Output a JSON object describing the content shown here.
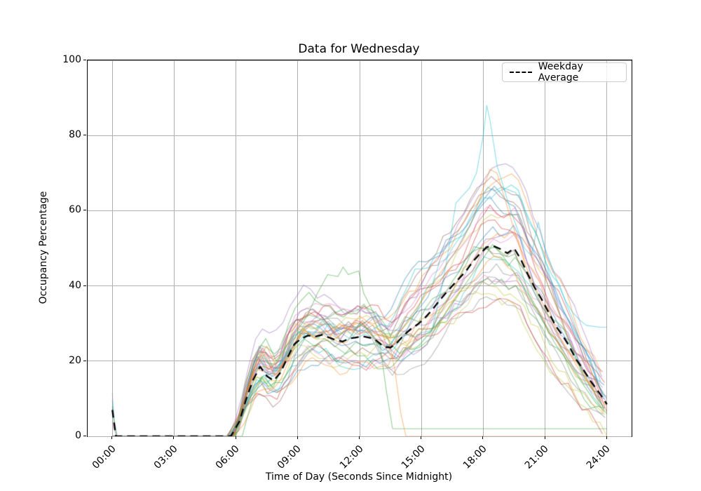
{
  "chart_data": {
    "type": "line",
    "title": "Data for Wednesday",
    "xlabel": "Time of Day (Seconds Since Midnight)",
    "ylabel": "Occupancy Percentage",
    "x_tick_labels": [
      "00:00",
      "03:00",
      "06:00",
      "09:00",
      "12:00",
      "15:00",
      "18:00",
      "21:00",
      "24:00"
    ],
    "x_tick_hours": [
      0,
      3,
      6,
      9,
      12,
      15,
      18,
      21,
      24
    ],
    "y_tick_labels": [
      "0",
      "20",
      "40",
      "60",
      "80",
      "100"
    ],
    "y_tick_values": [
      0,
      20,
      40,
      60,
      80,
      100
    ],
    "xlim_hours": [
      -1.2,
      25.2
    ],
    "ylim": [
      0,
      100
    ],
    "grid": true,
    "grid_color": "#b0b0b0",
    "legend": {
      "position": "upper right",
      "entries": [
        {
          "label": "Weekday Average",
          "color": "#000000",
          "dashed": true
        }
      ]
    },
    "average_series": {
      "name": "Weekday Average",
      "color": "#000000",
      "linewidth": 2.3,
      "dash": [
        11,
        7
      ],
      "points_h_pct": [
        [
          0,
          7
        ],
        [
          0.17,
          0
        ],
        [
          1,
          0
        ],
        [
          2,
          0
        ],
        [
          3,
          0
        ],
        [
          4,
          0
        ],
        [
          5,
          0
        ],
        [
          5.75,
          0
        ],
        [
          6.17,
          4
        ],
        [
          6.5,
          10
        ],
        [
          6.83,
          15
        ],
        [
          7.17,
          18.5
        ],
        [
          7.5,
          16
        ],
        [
          7.83,
          14.8
        ],
        [
          8.17,
          17
        ],
        [
          8.5,
          21
        ],
        [
          8.83,
          24.5
        ],
        [
          9.17,
          26
        ],
        [
          9.5,
          26.8
        ],
        [
          9.83,
          26.5
        ],
        [
          10.17,
          27
        ],
        [
          10.5,
          26.3
        ],
        [
          10.83,
          25.6
        ],
        [
          11.17,
          25.2
        ],
        [
          11.5,
          26
        ],
        [
          11.83,
          26.3
        ],
        [
          12.17,
          26.6
        ],
        [
          12.5,
          26.2
        ],
        [
          12.83,
          25.4
        ],
        [
          13.17,
          23.8
        ],
        [
          13.5,
          23.6
        ],
        [
          13.83,
          25
        ],
        [
          14.17,
          27
        ],
        [
          14.5,
          28.6
        ],
        [
          14.83,
          29.8
        ],
        [
          15.17,
          31.5
        ],
        [
          15.5,
          33.5
        ],
        [
          15.83,
          35.8
        ],
        [
          16.17,
          38
        ],
        [
          16.5,
          40
        ],
        [
          16.83,
          42
        ],
        [
          17.17,
          44
        ],
        [
          17.5,
          46.5
        ],
        [
          17.83,
          48.5
        ],
        [
          18.17,
          50.3
        ],
        [
          18.5,
          50.6
        ],
        [
          18.83,
          49.8
        ],
        [
          19.17,
          48.7
        ],
        [
          19.5,
          50
        ],
        [
          19.83,
          47
        ],
        [
          20.17,
          43
        ],
        [
          20.5,
          39.5
        ],
        [
          20.83,
          36.5
        ],
        [
          21.17,
          33
        ],
        [
          21.5,
          29.5
        ],
        [
          21.83,
          27
        ],
        [
          22.17,
          24
        ],
        [
          22.5,
          20.5
        ],
        [
          22.83,
          18
        ],
        [
          23.17,
          15
        ],
        [
          23.5,
          12.5
        ],
        [
          23.83,
          10
        ],
        [
          24,
          8.5
        ]
      ]
    },
    "individual_lines": {
      "description": "One translucent line per individual Wednesday; ~39 lines, 0% overnight, rising after 06:00 to a ~25% midday plateau, dipping near 13:30, peaking 40-88% near 18:00-19:00, falling to 2-16% by 24:00.",
      "count": 30,
      "alpha": 0.5,
      "linewidth": 1.1,
      "palette": [
        "#1f77b4",
        "#ff7f0e",
        "#2ca02c",
        "#d62728",
        "#9467bd",
        "#8c564b",
        "#e377c2",
        "#7f7f7f",
        "#bcbd22",
        "#17becf"
      ],
      "seed": 11,
      "step_hours": 0.3333,
      "start_hour_jitter": 0.5,
      "noise_step": 4.8,
      "noise_clamp": 8,
      "noise_decay": 0.92,
      "morning_scale_range": [
        0.7,
        1.35
      ],
      "evening_scale_range": [
        0.72,
        1.38
      ]
    },
    "highlight_lines": [
      {
        "name": "cyan-max-day-peak-88",
        "color": "#17becf",
        "points_h_pct": [
          [
            5.9,
            0
          ],
          [
            6.5,
            8
          ],
          [
            7,
            15
          ],
          [
            7.5,
            14
          ],
          [
            8,
            18
          ],
          [
            8.5,
            22
          ],
          [
            9,
            25
          ],
          [
            9.5,
            28
          ],
          [
            10,
            26
          ],
          [
            10.5,
            30
          ],
          [
            11,
            28
          ],
          [
            11.5,
            26
          ],
          [
            12,
            30
          ],
          [
            12.5,
            28
          ],
          [
            13,
            24
          ],
          [
            13.5,
            22
          ],
          [
            14,
            20
          ],
          [
            14.5,
            22
          ],
          [
            15,
            25
          ],
          [
            15.5,
            28
          ],
          [
            16,
            40
          ],
          [
            16.33,
            50
          ],
          [
            16.67,
            62
          ],
          [
            17,
            64
          ],
          [
            17.33,
            66
          ],
          [
            17.67,
            70
          ],
          [
            18,
            80
          ],
          [
            18.17,
            88
          ],
          [
            18.33,
            84
          ],
          [
            18.67,
            72
          ],
          [
            19,
            66
          ],
          [
            19.33,
            60
          ],
          [
            19.67,
            55
          ],
          [
            20,
            50
          ],
          [
            20.33,
            48
          ],
          [
            20.67,
            57
          ],
          [
            21,
            50
          ],
          [
            21.33,
            45
          ],
          [
            21.67,
            40
          ],
          [
            22,
            36
          ],
          [
            22.33,
            33
          ],
          [
            22.67,
            31
          ],
          [
            23,
            29.5
          ],
          [
            23.67,
            29
          ],
          [
            24,
            29
          ]
        ]
      },
      {
        "name": "orange-day-peak-71",
        "color": "#ff7f0e",
        "points_h_pct": [
          [
            5.9,
            0
          ],
          [
            6.5,
            12
          ],
          [
            7,
            20
          ],
          [
            7.5,
            24
          ],
          [
            8,
            18
          ],
          [
            8.5,
            20
          ],
          [
            9,
            26
          ],
          [
            9.5,
            30
          ],
          [
            10,
            28
          ],
          [
            10.5,
            26
          ],
          [
            11,
            30
          ],
          [
            11.5,
            28
          ],
          [
            12,
            32
          ],
          [
            12.5,
            30
          ],
          [
            13,
            28
          ],
          [
            13.5,
            26
          ],
          [
            14,
            28
          ],
          [
            14.5,
            32
          ],
          [
            15,
            36
          ],
          [
            15.5,
            40
          ],
          [
            16,
            44
          ],
          [
            16.5,
            48
          ],
          [
            17,
            52
          ],
          [
            17.5,
            58
          ],
          [
            18,
            66
          ],
          [
            18.33,
            71
          ],
          [
            18.67,
            70
          ],
          [
            19,
            64
          ],
          [
            19.33,
            58
          ],
          [
            19.67,
            52
          ],
          [
            20,
            46
          ],
          [
            20.5,
            40
          ],
          [
            21,
            34
          ],
          [
            21.5,
            28
          ],
          [
            22,
            24
          ],
          [
            22.5,
            19
          ],
          [
            23,
            15
          ],
          [
            23.5,
            11
          ],
          [
            24,
            8
          ]
        ]
      },
      {
        "name": "green-day-flat-2-after-1340",
        "color": "#2ca02c",
        "points_h_pct": [
          [
            5.95,
            0
          ],
          [
            6.3,
            0
          ],
          [
            6.8,
            10
          ],
          [
            7.3,
            16
          ],
          [
            7.8,
            13
          ],
          [
            8.3,
            19
          ],
          [
            8.8,
            23
          ],
          [
            9.3,
            26
          ],
          [
            9.8,
            24
          ],
          [
            10.3,
            26
          ],
          [
            10.8,
            24
          ],
          [
            11.3,
            22
          ],
          [
            11.8,
            25
          ],
          [
            12.3,
            24
          ],
          [
            12.8,
            25
          ],
          [
            13,
            24
          ],
          [
            13.3,
            12
          ],
          [
            13.6,
            2
          ],
          [
            24,
            2
          ]
        ]
      },
      {
        "name": "orange-day-zero-after-1415",
        "color": "#ff7f0e",
        "points_h_pct": [
          [
            5.9,
            0
          ],
          [
            6.4,
            10
          ],
          [
            6.9,
            18
          ],
          [
            7.4,
            22
          ],
          [
            7.9,
            16
          ],
          [
            8.4,
            20
          ],
          [
            8.9,
            25
          ],
          [
            9.4,
            28
          ],
          [
            9.9,
            26
          ],
          [
            10.4,
            28
          ],
          [
            10.9,
            26
          ],
          [
            11.4,
            29
          ],
          [
            11.9,
            27
          ],
          [
            12.4,
            28
          ],
          [
            12.9,
            27
          ],
          [
            13.4,
            26
          ],
          [
            13.7,
            18
          ],
          [
            14,
            6
          ],
          [
            14.25,
            0
          ],
          [
            24,
            0
          ]
        ]
      },
      {
        "name": "green-day-midday-peak-45",
        "color": "#2ca02c",
        "points_h_pct": [
          [
            5.95,
            0
          ],
          [
            6.45,
            14
          ],
          [
            6.95,
            22
          ],
          [
            7.45,
            26
          ],
          [
            7.95,
            20
          ],
          [
            8.45,
            24
          ],
          [
            8.95,
            28
          ],
          [
            9.45,
            32
          ],
          [
            9.95,
            38
          ],
          [
            10.45,
            43
          ],
          [
            10.95,
            42.5
          ],
          [
            11.2,
            45
          ],
          [
            11.45,
            43
          ],
          [
            11.95,
            44
          ],
          [
            12.2,
            38
          ],
          [
            12.95,
            30
          ],
          [
            13.45,
            25
          ],
          [
            13.95,
            22
          ],
          [
            14.45,
            24
          ],
          [
            14.95,
            26
          ],
          [
            15.45,
            28
          ],
          [
            15.95,
            31
          ],
          [
            16.45,
            35
          ],
          [
            16.95,
            39
          ],
          [
            17.45,
            43
          ],
          [
            17.95,
            47
          ],
          [
            18.45,
            51
          ],
          [
            18.95,
            48
          ],
          [
            19.45,
            44
          ],
          [
            19.95,
            40
          ],
          [
            20.45,
            35
          ],
          [
            20.95,
            30
          ],
          [
            21.45,
            25
          ],
          [
            21.95,
            21
          ],
          [
            22.45,
            17
          ],
          [
            22.95,
            13
          ],
          [
            23.45,
            9
          ],
          [
            24,
            6
          ]
        ]
      }
    ],
    "midnight_spikes": [
      {
        "color": "#9a9a9a",
        "peak_pct": 11.5
      },
      {
        "color": "#17becf",
        "peak_pct": 9.5
      },
      {
        "color": "#2ca02c",
        "peak_pct": 8
      },
      {
        "color": "#e377c2",
        "peak_pct": 4
      }
    ]
  }
}
